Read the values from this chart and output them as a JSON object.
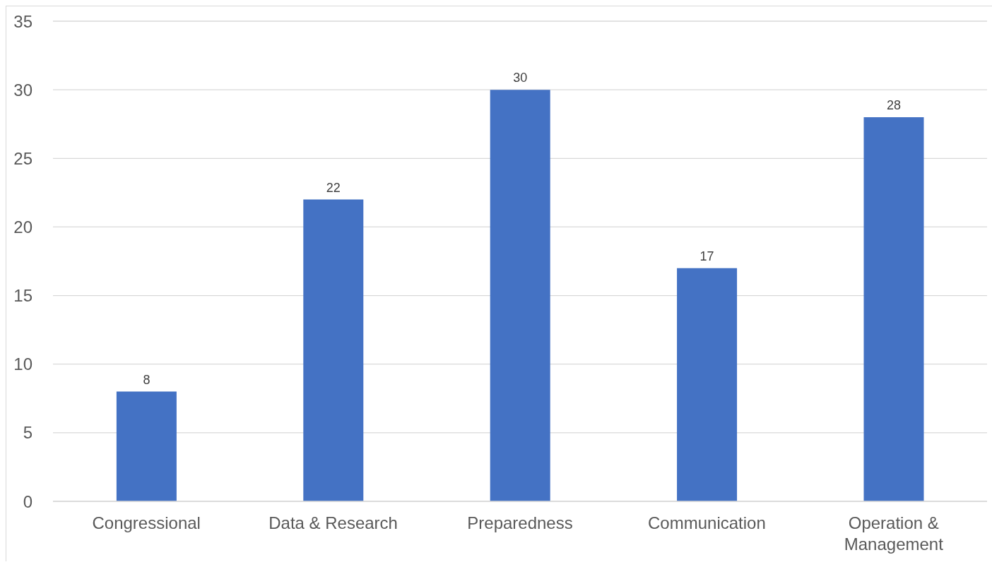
{
  "chart_data": {
    "type": "bar",
    "categories": [
      "Congressional",
      "Data & Research",
      "Preparedness",
      "Communication",
      "Operation & Management"
    ],
    "values": [
      8,
      22,
      30,
      17,
      28
    ],
    "color": "#4472c4",
    "ylim": [
      0,
      35
    ],
    "yticks": [
      0,
      5,
      10,
      15,
      20,
      25,
      30,
      35
    ],
    "grid": "y",
    "data_labels": true
  }
}
